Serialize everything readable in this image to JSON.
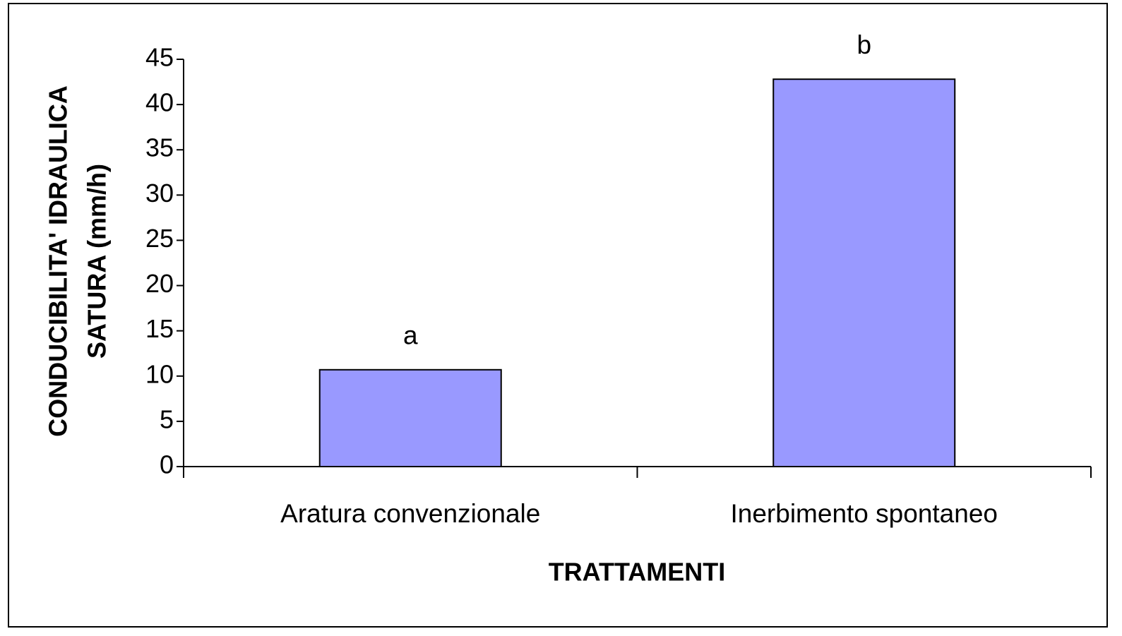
{
  "chart_data": {
    "type": "bar",
    "ylabel": [
      "CONDUCIBILITA' IDRAULICA",
      "SATURA (mm/h)"
    ],
    "xlabel": "TRATTAMENTI",
    "categories": [
      "Aratura convenzionale",
      "Inerbimento spontaneo"
    ],
    "values": [
      10.7,
      42.8
    ],
    "annotations": [
      "a",
      "b"
    ],
    "color": "#9999ff",
    "ylim": [
      0,
      45
    ],
    "yticks": [
      0,
      5,
      10,
      15,
      20,
      25,
      30,
      35,
      40,
      45
    ],
    "grid": false
  }
}
